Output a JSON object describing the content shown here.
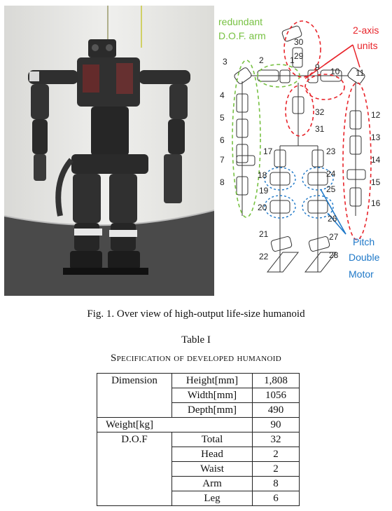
{
  "figure": {
    "labels": {
      "redundant_line1": "redundant",
      "redundant_line2": "D.O.F. arm",
      "two_axis_line1": "2-axis",
      "two_axis_line2": "units",
      "pitch_line1": "Pitch",
      "pitch_line2": "Double",
      "pitch_line3": "Motor"
    },
    "joint_numbers": [
      "1",
      "2",
      "3",
      "4",
      "5",
      "6",
      "7",
      "8",
      "9",
      "10",
      "11",
      "12",
      "13",
      "14",
      "15",
      "16",
      "17",
      "18",
      "19",
      "20",
      "21",
      "22",
      "23",
      "24",
      "25",
      "26",
      "27",
      "28",
      "29",
      "30",
      "31",
      "32"
    ],
    "colors": {
      "green": "#77c142",
      "red": "#e8242a",
      "blue": "#1e78c8"
    }
  },
  "caption": "Fig. 1.   Over view of high-output life-size humanoid",
  "table": {
    "title": "Table I",
    "subtitle": "Specification of developed humanoid",
    "rows": {
      "dimension": "Dimension",
      "height_label": "Height[mm]",
      "height_value": "1,808",
      "width_label": "Width[mm]",
      "width_value": "1056",
      "depth_label": "Depth[mm]",
      "depth_value": "490",
      "weight_label": "Weight[kg]",
      "weight_value": "90",
      "dof": "D.O.F",
      "total_label": "Total",
      "total_value": "32",
      "head_label": "Head",
      "head_value": "2",
      "waist_label": "Waist",
      "waist_value": "2",
      "arm_label": "Arm",
      "arm_value": "8",
      "leg_label": "Leg",
      "leg_value": "6"
    }
  }
}
